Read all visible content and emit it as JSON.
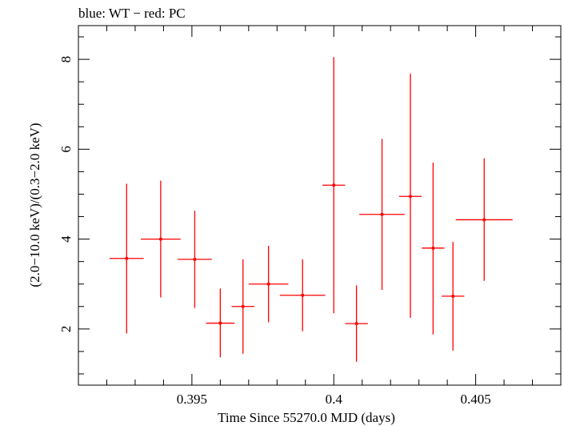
{
  "chart_data": {
    "type": "scatter",
    "title": "blue: WT − red: PC",
    "xlabel": "Time Since 55270.0 MJD (days)",
    "ylabel": "(2.0−10.0 keV)/(0.3−2.0 keV)",
    "xlim": [
      0.391,
      0.408
    ],
    "ylim": [
      0.75,
      8.75
    ],
    "x_ticks": [
      0.395,
      0.4,
      0.405
    ],
    "x_tick_labels": [
      "0.395",
      "0.4",
      "0.405"
    ],
    "y_ticks": [
      2,
      4,
      6,
      8
    ],
    "y_tick_labels": [
      "2",
      "4",
      "6",
      "8"
    ],
    "grid": false,
    "series": [
      {
        "color": "#ff0000",
        "points": [
          {
            "x": 0.3927,
            "xerr": 0.0006,
            "y": 3.57,
            "ylo": 1.9,
            "yhi": 5.23
          },
          {
            "x": 0.3939,
            "xerr": 0.0007,
            "y": 4.0,
            "ylo": 2.7,
            "yhi": 5.3
          },
          {
            "x": 0.3951,
            "xerr": 0.0006,
            "y": 3.55,
            "ylo": 2.47,
            "yhi": 4.63
          },
          {
            "x": 0.396,
            "xerr": 0.0005,
            "y": 2.13,
            "ylo": 1.37,
            "yhi": 2.9
          },
          {
            "x": 0.3968,
            "xerr": 0.0004,
            "y": 2.5,
            "ylo": 1.45,
            "yhi": 3.55
          },
          {
            "x": 0.3977,
            "xerr": 0.0007,
            "y": 3.0,
            "ylo": 2.15,
            "yhi": 3.85
          },
          {
            "x": 0.3989,
            "xerr": 0.0008,
            "y": 2.75,
            "ylo": 1.95,
            "yhi": 3.55
          },
          {
            "x": 0.4,
            "xerr": 0.0004,
            "y": 5.2,
            "ylo": 2.35,
            "yhi": 8.05
          },
          {
            "x": 0.4008,
            "xerr": 0.0004,
            "y": 2.12,
            "ylo": 1.27,
            "yhi": 2.97
          },
          {
            "x": 0.4017,
            "xerr": 0.0008,
            "y": 4.55,
            "ylo": 2.87,
            "yhi": 6.23
          },
          {
            "x": 0.4027,
            "xerr": 0.0004,
            "y": 4.95,
            "ylo": 2.25,
            "yhi": 7.68
          },
          {
            "x": 0.4035,
            "xerr": 0.0004,
            "y": 3.8,
            "ylo": 1.88,
            "yhi": 5.7
          },
          {
            "x": 0.4042,
            "xerr": 0.0004,
            "y": 2.73,
            "ylo": 1.52,
            "yhi": 3.94
          },
          {
            "x": 0.4053,
            "xerr": 0.001,
            "y": 4.43,
            "ylo": 3.07,
            "yhi": 5.8
          }
        ]
      }
    ]
  }
}
